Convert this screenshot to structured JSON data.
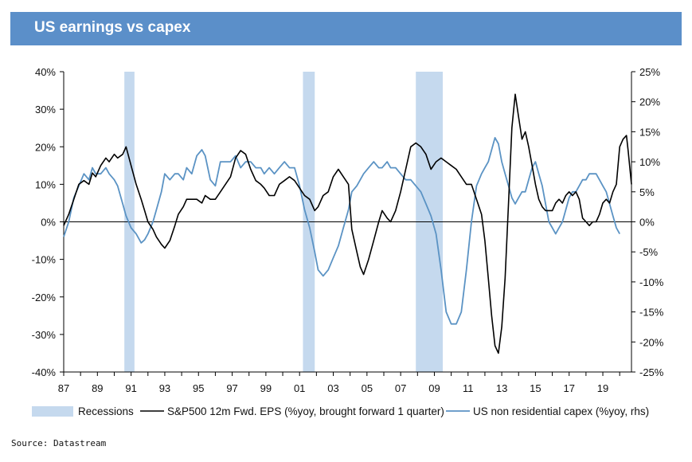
{
  "header": {
    "title": "US earnings vs capex"
  },
  "source": "Source: Datastream",
  "colors": {
    "title_bar": "#5b8fc9",
    "recession": "#c5d9ee",
    "eps": "#000000",
    "capex": "#5b93c4"
  },
  "chart_data": {
    "type": "line",
    "title": "US earnings vs capex",
    "x_ticks": [
      "87",
      "89",
      "91",
      "93",
      "95",
      "97",
      "99",
      "01",
      "03",
      "05",
      "07",
      "09",
      "11",
      "13",
      "15",
      "17",
      "19"
    ],
    "x_range": [
      1987,
      2020.7
    ],
    "y_left": {
      "range": [
        -40,
        40
      ],
      "ticks": [
        "-40%",
        "-30%",
        "-20%",
        "-10%",
        "0%",
        "10%",
        "20%",
        "30%",
        "40%"
      ]
    },
    "y_right": {
      "range": [
        -25,
        25
      ],
      "ticks": [
        "-25%",
        "-20%",
        "-15%",
        "-10%",
        "-5%",
        "0%",
        "5%",
        "10%",
        "15%",
        "20%",
        "25%"
      ]
    },
    "grid": false,
    "legend_position": "bottom",
    "recessions": [
      [
        1990.6,
        1991.2
      ],
      [
        2001.2,
        2001.9
      ],
      [
        2007.9,
        2009.5
      ]
    ],
    "series": [
      {
        "name": "S&P500 12m Fwd. EPS (%yoy, brought forward 1 quarter)",
        "axis": "left",
        "points": [
          [
            1987.0,
            -1
          ],
          [
            1987.3,
            2
          ],
          [
            1987.6,
            6
          ],
          [
            1987.9,
            10
          ],
          [
            1988.2,
            11
          ],
          [
            1988.5,
            10
          ],
          [
            1988.7,
            13
          ],
          [
            1988.9,
            12
          ],
          [
            1989.2,
            15
          ],
          [
            1989.5,
            17
          ],
          [
            1989.7,
            16
          ],
          [
            1990.0,
            18
          ],
          [
            1990.2,
            17
          ],
          [
            1990.5,
            18
          ],
          [
            1990.7,
            20
          ],
          [
            1991.0,
            15
          ],
          [
            1991.3,
            10
          ],
          [
            1991.6,
            6
          ],
          [
            1991.8,
            3
          ],
          [
            1992.0,
            0
          ],
          [
            1992.3,
            -2
          ],
          [
            1992.5,
            -4
          ],
          [
            1992.8,
            -6
          ],
          [
            1993.0,
            -7
          ],
          [
            1993.3,
            -5
          ],
          [
            1993.6,
            -1
          ],
          [
            1993.8,
            2
          ],
          [
            1994.1,
            4
          ],
          [
            1994.3,
            6
          ],
          [
            1994.6,
            6
          ],
          [
            1994.9,
            6
          ],
          [
            1995.2,
            5
          ],
          [
            1995.4,
            7
          ],
          [
            1995.7,
            6
          ],
          [
            1996.0,
            6
          ],
          [
            1996.3,
            8
          ],
          [
            1996.6,
            10
          ],
          [
            1996.9,
            12
          ],
          [
            1997.2,
            17
          ],
          [
            1997.5,
            19
          ],
          [
            1997.8,
            18
          ],
          [
            1998.1,
            14
          ],
          [
            1998.4,
            11
          ],
          [
            1998.7,
            10
          ],
          [
            1998.9,
            9
          ],
          [
            1999.2,
            7
          ],
          [
            1999.5,
            7
          ],
          [
            1999.8,
            10
          ],
          [
            2000.1,
            11
          ],
          [
            2000.4,
            12
          ],
          [
            2000.7,
            11
          ],
          [
            2001.0,
            9
          ],
          [
            2001.3,
            7
          ],
          [
            2001.6,
            6
          ],
          [
            2001.9,
            3
          ],
          [
            2002.1,
            4
          ],
          [
            2002.4,
            7
          ],
          [
            2002.7,
            8
          ],
          [
            2003.0,
            12
          ],
          [
            2003.3,
            14
          ],
          [
            2003.6,
            12
          ],
          [
            2003.9,
            10
          ],
          [
            2004.1,
            -2
          ],
          [
            2004.4,
            -8
          ],
          [
            2004.6,
            -12
          ],
          [
            2004.8,
            -14
          ],
          [
            2005.1,
            -10
          ],
          [
            2005.4,
            -5
          ],
          [
            2005.7,
            0
          ],
          [
            2005.9,
            3
          ],
          [
            2006.2,
            1
          ],
          [
            2006.4,
            0
          ],
          [
            2006.7,
            3
          ],
          [
            2007.0,
            8
          ],
          [
            2007.3,
            14
          ],
          [
            2007.6,
            20
          ],
          [
            2007.9,
            21
          ],
          [
            2008.2,
            20
          ],
          [
            2008.5,
            18
          ],
          [
            2008.8,
            14
          ],
          [
            2009.1,
            16
          ],
          [
            2009.4,
            17
          ],
          [
            2009.7,
            16
          ],
          [
            2010.0,
            15
          ],
          [
            2010.3,
            14
          ],
          [
            2010.6,
            12
          ],
          [
            2010.9,
            10
          ],
          [
            2011.2,
            10
          ],
          [
            2011.5,
            6
          ],
          [
            2011.8,
            2
          ],
          [
            2012.0,
            -5
          ],
          [
            2012.2,
            -15
          ],
          [
            2012.4,
            -25
          ],
          [
            2012.6,
            -33
          ],
          [
            2012.8,
            -35
          ],
          [
            2013.0,
            -28
          ],
          [
            2013.2,
            -15
          ],
          [
            2013.4,
            5
          ],
          [
            2013.6,
            25
          ],
          [
            2013.8,
            34
          ],
          [
            2014.0,
            28
          ],
          [
            2014.2,
            22
          ],
          [
            2014.4,
            24
          ],
          [
            2014.6,
            20
          ],
          [
            2014.8,
            15
          ],
          [
            2015.0,
            10
          ],
          [
            2015.2,
            6
          ],
          [
            2015.4,
            4
          ],
          [
            2015.6,
            3
          ],
          [
            2015.8,
            3
          ],
          [
            2016.0,
            3
          ],
          [
            2016.2,
            5
          ],
          [
            2016.4,
            6
          ],
          [
            2016.6,
            5
          ],
          [
            2016.8,
            7
          ],
          [
            2017.0,
            8
          ],
          [
            2017.2,
            7
          ],
          [
            2017.4,
            8
          ],
          [
            2017.6,
            6
          ],
          [
            2017.8,
            1
          ],
          [
            2018.0,
            0
          ],
          [
            2018.2,
            -1
          ],
          [
            2018.4,
            0
          ],
          [
            2018.6,
            0
          ],
          [
            2018.8,
            2
          ],
          [
            2019.0,
            5
          ],
          [
            2019.2,
            6
          ],
          [
            2019.4,
            5
          ],
          [
            2019.6,
            8
          ],
          [
            2019.8,
            10
          ],
          [
            2020.0,
            20
          ],
          [
            2020.2,
            22
          ],
          [
            2020.4,
            23
          ],
          [
            2020.5,
            19
          ],
          [
            2020.7,
            10
          ]
        ]
      },
      {
        "name": "US non residential capex (%yoy, rhs)",
        "axis": "right",
        "points": [
          [
            1987.0,
            -2.5
          ],
          [
            1987.3,
            0
          ],
          [
            1987.6,
            4
          ],
          [
            1987.9,
            6
          ],
          [
            1988.2,
            8
          ],
          [
            1988.5,
            7
          ],
          [
            1988.7,
            9
          ],
          [
            1988.9,
            8
          ],
          [
            1989.2,
            8
          ],
          [
            1989.5,
            9
          ],
          [
            1989.7,
            8
          ],
          [
            1990.0,
            7
          ],
          [
            1990.2,
            6
          ],
          [
            1990.5,
            3
          ],
          [
            1990.7,
            1
          ],
          [
            1991.0,
            -1
          ],
          [
            1991.3,
            -2
          ],
          [
            1991.6,
            -3.5
          ],
          [
            1991.8,
            -3
          ],
          [
            1992.0,
            -2
          ],
          [
            1992.3,
            0
          ],
          [
            1992.5,
            2
          ],
          [
            1992.8,
            5
          ],
          [
            1993.0,
            8
          ],
          [
            1993.3,
            7
          ],
          [
            1993.6,
            8
          ],
          [
            1993.8,
            8
          ],
          [
            1994.1,
            7
          ],
          [
            1994.3,
            9
          ],
          [
            1994.6,
            8
          ],
          [
            1994.9,
            11
          ],
          [
            1995.2,
            12
          ],
          [
            1995.4,
            11
          ],
          [
            1995.7,
            7
          ],
          [
            1996.0,
            6
          ],
          [
            1996.3,
            10
          ],
          [
            1996.6,
            10
          ],
          [
            1996.9,
            10
          ],
          [
            1997.2,
            11
          ],
          [
            1997.5,
            9
          ],
          [
            1997.8,
            10
          ],
          [
            1998.1,
            10
          ],
          [
            1998.4,
            9
          ],
          [
            1998.7,
            9
          ],
          [
            1998.9,
            8
          ],
          [
            1999.2,
            9
          ],
          [
            1999.5,
            8
          ],
          [
            1999.8,
            9
          ],
          [
            2000.1,
            10
          ],
          [
            2000.4,
            9
          ],
          [
            2000.7,
            9
          ],
          [
            2001.0,
            6
          ],
          [
            2001.3,
            2
          ],
          [
            2001.6,
            -1
          ],
          [
            2001.9,
            -5
          ],
          [
            2002.1,
            -8
          ],
          [
            2002.4,
            -9
          ],
          [
            2002.7,
            -8
          ],
          [
            2003.0,
            -6
          ],
          [
            2003.3,
            -4
          ],
          [
            2003.6,
            -1
          ],
          [
            2003.9,
            2
          ],
          [
            2004.1,
            5
          ],
          [
            2004.4,
            6
          ],
          [
            2004.6,
            7
          ],
          [
            2004.8,
            8
          ],
          [
            2005.1,
            9
          ],
          [
            2005.4,
            10
          ],
          [
            2005.7,
            9
          ],
          [
            2005.9,
            9
          ],
          [
            2006.2,
            10
          ],
          [
            2006.4,
            9
          ],
          [
            2006.7,
            9
          ],
          [
            2007.0,
            8
          ],
          [
            2007.3,
            7
          ],
          [
            2007.6,
            7
          ],
          [
            2007.9,
            6
          ],
          [
            2008.2,
            5
          ],
          [
            2008.5,
            3
          ],
          [
            2008.8,
            1
          ],
          [
            2009.1,
            -2
          ],
          [
            2009.4,
            -8
          ],
          [
            2009.7,
            -15
          ],
          [
            2010.0,
            -17
          ],
          [
            2010.3,
            -17
          ],
          [
            2010.6,
            -15
          ],
          [
            2010.9,
            -8
          ],
          [
            2011.2,
            0
          ],
          [
            2011.5,
            6
          ],
          [
            2011.8,
            8
          ],
          [
            2012.0,
            9
          ],
          [
            2012.2,
            10
          ],
          [
            2012.4,
            12
          ],
          [
            2012.6,
            14
          ],
          [
            2012.8,
            13
          ],
          [
            2013.0,
            10
          ],
          [
            2013.2,
            8
          ],
          [
            2013.4,
            6
          ],
          [
            2013.6,
            4
          ],
          [
            2013.8,
            3
          ],
          [
            2014.0,
            4
          ],
          [
            2014.2,
            5
          ],
          [
            2014.4,
            5
          ],
          [
            2014.6,
            7
          ],
          [
            2014.8,
            9
          ],
          [
            2015.0,
            10
          ],
          [
            2015.2,
            8
          ],
          [
            2015.4,
            6
          ],
          [
            2015.6,
            3
          ],
          [
            2015.8,
            0
          ],
          [
            2016.0,
            -1
          ],
          [
            2016.2,
            -2
          ],
          [
            2016.4,
            -1
          ],
          [
            2016.6,
            0
          ],
          [
            2016.8,
            2
          ],
          [
            2017.0,
            4
          ],
          [
            2017.2,
            5
          ],
          [
            2017.4,
            5
          ],
          [
            2017.6,
            6
          ],
          [
            2017.8,
            7
          ],
          [
            2018.0,
            7
          ],
          [
            2018.2,
            8
          ],
          [
            2018.4,
            8
          ],
          [
            2018.6,
            8
          ],
          [
            2018.8,
            7
          ],
          [
            2019.0,
            6
          ],
          [
            2019.2,
            5
          ],
          [
            2019.4,
            3
          ],
          [
            2019.6,
            1
          ],
          [
            2019.8,
            -1
          ],
          [
            2020.0,
            -2
          ]
        ]
      }
    ]
  }
}
